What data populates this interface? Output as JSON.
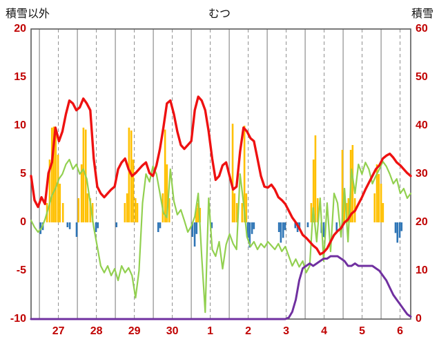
{
  "header": {
    "left_axis_label": "積雪以外",
    "title": "むつ",
    "right_axis_label": "積雪"
  },
  "chart_data": {
    "type": "line",
    "title": "むつ",
    "left_axis": {
      "label": "積雪以外",
      "min": -10,
      "max": 20,
      "ticks": [
        20,
        15,
        10,
        5,
        0,
        -5,
        -10
      ]
    },
    "right_axis": {
      "label": "積雪",
      "min": 0,
      "max": 60,
      "ticks": [
        60,
        50,
        40,
        30,
        20,
        10,
        0
      ]
    },
    "x_axis": {
      "day_labels": [
        "27",
        "28",
        "29",
        "30",
        "1",
        "2",
        "3",
        "4",
        "5",
        "6"
      ],
      "first_boundary_frac": 0.022,
      "day_width_frac": 0.1
    },
    "colors": {
      "grid": "#8c8c8c",
      "border": "#595959",
      "tick_label": "#c00000",
      "temperature": "#ee1111",
      "green_line": "#92d050",
      "snow_depth": "#7030a0",
      "precip_bars": "#ffc000",
      "negative_bars": "#2e75b6"
    },
    "series": [
      {
        "name": "temperature",
        "axis": "left",
        "color": "#ee1111",
        "stroke_width": 3.4,
        "values": [
          4.8,
          2.3,
          1.6,
          2.6,
          1.9,
          5.1,
          6.2,
          9.8,
          8.4,
          9.4,
          11.2,
          12.6,
          12.3,
          11.6,
          11.9,
          12.8,
          12.3,
          11.6,
          6.6,
          3.7,
          3.0,
          2.6,
          3.0,
          3.4,
          3.7,
          5.5,
          6.2,
          6.6,
          5.5,
          4.8,
          5.1,
          5.5,
          5.9,
          6.2,
          5.1,
          4.8,
          5.9,
          7.6,
          9.8,
          12.3,
          12.6,
          11.2,
          9.4,
          8.0,
          7.6,
          8.0,
          8.4,
          11.6,
          13.0,
          12.6,
          11.6,
          9.4,
          6.6,
          4.4,
          4.8,
          5.9,
          6.2,
          4.8,
          3.4,
          3.7,
          7.3,
          9.8,
          9.4,
          8.7,
          8.4,
          6.6,
          4.8,
          3.7,
          3.6,
          3.9,
          3.4,
          2.6,
          2.3,
          1.9,
          1.2,
          0.5,
          0.0,
          -0.6,
          -1.3,
          -1.6,
          -2.0,
          -2.4,
          -2.7,
          -3.3,
          -3.1,
          -2.7,
          -2.0,
          -1.3,
          -0.9,
          -0.6,
          0.0,
          0.3,
          0.9,
          1.2,
          1.9,
          2.6,
          3.4,
          4.1,
          4.8,
          5.5,
          5.9,
          6.6,
          6.9,
          7.1,
          6.7,
          6.2,
          5.9,
          5.5,
          5.1,
          4.8
        ]
      },
      {
        "name": "green-line",
        "axis": "left",
        "color": "#92d050",
        "stroke_width": 2.2,
        "values": [
          0.2,
          -0.5,
          -1.0,
          -0.6,
          0.3,
          1.5,
          2.8,
          3.5,
          4.5,
          5.0,
          6.0,
          6.5,
          5.5,
          6.0,
          5.0,
          5.5,
          4.5,
          2.0,
          -0.5,
          -2.5,
          -4.5,
          -5.2,
          -4.5,
          -5.5,
          -4.8,
          -6.0,
          -4.5,
          -5.2,
          -4.7,
          -5.5,
          -7.8,
          -5.0,
          2.0,
          5.0,
          4.2,
          5.8,
          5.0,
          3.0,
          1.0,
          0.5,
          5.5,
          2.2,
          0.8,
          1.3,
          0.2,
          -1.0,
          -0.4,
          0.6,
          3.0,
          -3.5,
          -9.3,
          2.5,
          -2.8,
          -3.5,
          -2.0,
          -4.8,
          -2.3,
          -1.2,
          -2.2,
          -2.8,
          5.0,
          2.0,
          -1.5,
          -2.5,
          -2.0,
          -2.8,
          -2.2,
          -2.6,
          -2.0,
          -2.4,
          -2.8,
          -2.2,
          -3.0,
          -2.5,
          -3.5,
          -4.5,
          -3.8,
          -4.6,
          -4.0,
          -5.2,
          -4.5,
          1.5,
          -2.0,
          2.5,
          -4.0,
          2.0,
          -3.0,
          3.0,
          2.0,
          -1.5,
          3.5,
          -2.0,
          5.5,
          3.0,
          6.0,
          5.0,
          6.2,
          5.5,
          4.0,
          4.8,
          5.5,
          6.3,
          5.8,
          5.0,
          4.0,
          4.5,
          3.0,
          3.5,
          2.5,
          3.0
        ]
      },
      {
        "name": "snow-depth",
        "axis": "right",
        "color": "#7030a0",
        "stroke_width": 3,
        "values": [
          0,
          0,
          0,
          0,
          0,
          0,
          0,
          0,
          0,
          0,
          0,
          0,
          0,
          0,
          0,
          0,
          0,
          0,
          0,
          0,
          0,
          0,
          0,
          0,
          0,
          0,
          0,
          0,
          0,
          0,
          0,
          0,
          0,
          0,
          0,
          0,
          0,
          0,
          0,
          0,
          0,
          0,
          0,
          0,
          0,
          0,
          0,
          0,
          0,
          0,
          0,
          0,
          0,
          0,
          0,
          0,
          0,
          0,
          0,
          0,
          0,
          0,
          0,
          0,
          0,
          0,
          0,
          0,
          0,
          0,
          0,
          0,
          0,
          0,
          0.3,
          1.5,
          4,
          8,
          10.5,
          11,
          11.5,
          11,
          11.5,
          12,
          12.5,
          12.5,
          13,
          13,
          13,
          12.5,
          12,
          11,
          11,
          11.5,
          11,
          11,
          11,
          11,
          11,
          10.5,
          10,
          9,
          8,
          6.5,
          5,
          4,
          3,
          2,
          1,
          0.5
        ]
      }
    ],
    "bars": [
      {
        "name": "precip-bars",
        "axis": "left",
        "color": "#ffc000",
        "points": [
          [
            0.042,
            2
          ],
          [
            0.049,
            6.5
          ],
          [
            0.055,
            9.8
          ],
          [
            0.06,
            9.9
          ],
          [
            0.065,
            9.5
          ],
          [
            0.071,
            7
          ],
          [
            0.076,
            4
          ],
          [
            0.084,
            2
          ],
          [
            0.125,
            2.5
          ],
          [
            0.133,
            6
          ],
          [
            0.138,
            9.8
          ],
          [
            0.144,
            9.6
          ],
          [
            0.149,
            3
          ],
          [
            0.156,
            2.5
          ],
          [
            0.162,
            2
          ],
          [
            0.247,
            2
          ],
          [
            0.253,
            3
          ],
          [
            0.258,
            9.8
          ],
          [
            0.264,
            9.5
          ],
          [
            0.269,
            6.5
          ],
          [
            0.275,
            2.5
          ],
          [
            0.28,
            2
          ],
          [
            0.347,
            3
          ],
          [
            0.353,
            9.6
          ],
          [
            0.358,
            6
          ],
          [
            0.364,
            2.5
          ],
          [
            0.435,
            1.5
          ],
          [
            0.44,
            2
          ],
          [
            0.445,
            1.5
          ],
          [
            0.531,
            10.2
          ],
          [
            0.536,
            3
          ],
          [
            0.542,
            2
          ],
          [
            0.556,
            2
          ],
          [
            0.562,
            10
          ],
          [
            0.567,
            3
          ],
          [
            0.738,
            2
          ],
          [
            0.744,
            6.5
          ],
          [
            0.749,
            9
          ],
          [
            0.755,
            2.5
          ],
          [
            0.82,
            7.5
          ],
          [
            0.825,
            3
          ],
          [
            0.831,
            2
          ],
          [
            0.836,
            2.5
          ],
          [
            0.842,
            7.5
          ],
          [
            0.847,
            8
          ],
          [
            0.853,
            2.5
          ],
          [
            0.905,
            3
          ],
          [
            0.911,
            6
          ],
          [
            0.916,
            5
          ],
          [
            0.922,
            4
          ],
          [
            0.927,
            2
          ]
        ]
      },
      {
        "name": "negative-bars",
        "axis": "left",
        "color": "#2e75b6",
        "points": [
          [
            0.025,
            -1.2
          ],
          [
            0.031,
            -0.8
          ],
          [
            0.096,
            -0.5
          ],
          [
            0.102,
            -0.7
          ],
          [
            0.12,
            -1.5
          ],
          [
            0.171,
            -1.0
          ],
          [
            0.176,
            -0.6
          ],
          [
            0.225,
            -0.5
          ],
          [
            0.335,
            -1.0
          ],
          [
            0.34,
            -0.6
          ],
          [
            0.425,
            -1.5
          ],
          [
            0.431,
            -2.5
          ],
          [
            0.436,
            -1.2
          ],
          [
            0.476,
            -0.6
          ],
          [
            0.571,
            -1.6
          ],
          [
            0.576,
            -2.6
          ],
          [
            0.582,
            -1.2
          ],
          [
            0.587,
            -0.7
          ],
          [
            0.653,
            -1.0
          ],
          [
            0.658,
            -2.1
          ],
          [
            0.664,
            -1.6
          ],
          [
            0.669,
            -0.8
          ],
          [
            0.696,
            -0.6
          ],
          [
            0.702,
            -1.0
          ],
          [
            0.707,
            -0.6
          ],
          [
            0.729,
            -0.5
          ],
          [
            0.765,
            -1.1
          ],
          [
            0.771,
            -1.5
          ],
          [
            0.805,
            -1.0
          ],
          [
            0.96,
            -1.1
          ],
          [
            0.965,
            -2.1
          ],
          [
            0.971,
            -1.6
          ],
          [
            0.976,
            -0.9
          ]
        ]
      }
    ]
  }
}
